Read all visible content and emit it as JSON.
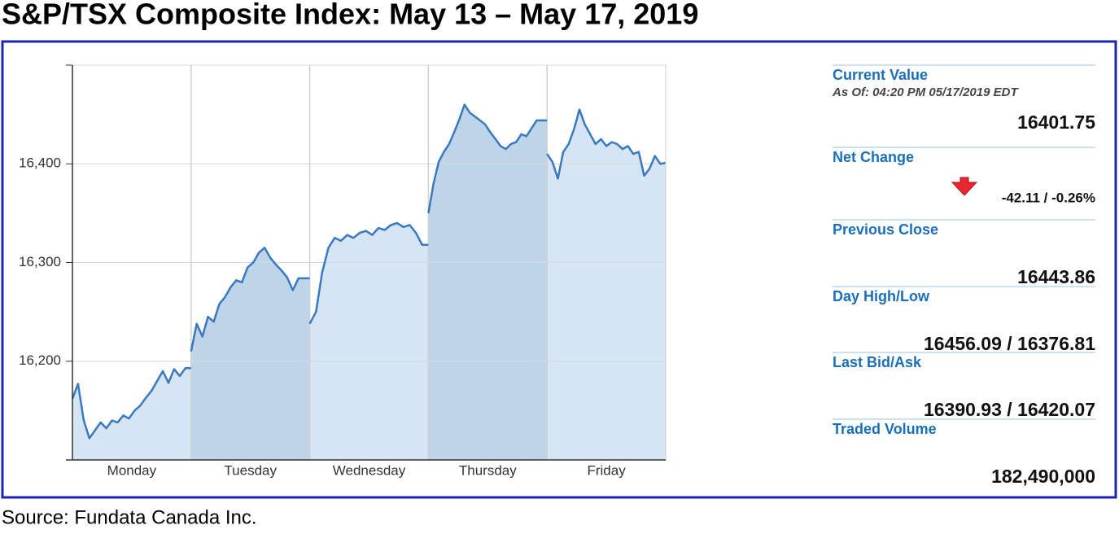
{
  "title": "S&P/TSX Composite Index: May 13 – May 17, 2019",
  "chart_data": {
    "type": "line",
    "categories": [
      "Monday",
      "Tuesday",
      "Wednesday",
      "Thursday",
      "Friday"
    ],
    "values": [
      [
        16162,
        16177,
        16140,
        16122,
        16130,
        16138,
        16132,
        16140,
        16138,
        16145,
        16142,
        16150,
        16155,
        16163,
        16170,
        16180,
        16190,
        16178,
        16192,
        16185,
        16193,
        16193
      ],
      [
        16210,
        16238,
        16225,
        16245,
        16240,
        16258,
        16265,
        16275,
        16282,
        16280,
        16295,
        16300,
        16310,
        16315,
        16305,
        16298,
        16292,
        16285,
        16272,
        16284,
        16284,
        16284
      ],
      [
        16238,
        16250,
        16290,
        16315,
        16325,
        16322,
        16328,
        16325,
        16330,
        16332,
        16328,
        16335,
        16333,
        16338,
        16340,
        16336,
        16338,
        16330,
        16318,
        16318
      ],
      [
        16350,
        16380,
        16402,
        16412,
        16420,
        16432,
        16445,
        16460,
        16452,
        16448,
        16444,
        16440,
        16432,
        16425,
        16418,
        16415,
        16420,
        16422,
        16430,
        16428,
        16436,
        16444,
        16444,
        16444
      ],
      [
        16410,
        16402,
        16385,
        16412,
        16420,
        16435,
        16455,
        16440,
        16430,
        16420,
        16425,
        16418,
        16422,
        16420,
        16415,
        16418,
        16410,
        16412,
        16388,
        16395,
        16408,
        16400,
        16401
      ]
    ],
    "color": "#3a78c0",
    "fill_colors": [
      "#d5e5f3",
      "#bed4e9"
    ],
    "ylim": [
      16100,
      16500
    ],
    "yticks": [
      {
        "value": 16200,
        "label": "16,200"
      },
      {
        "value": 16300,
        "label": "16,300"
      },
      {
        "value": 16400,
        "label": "16,400"
      }
    ],
    "grid": true
  },
  "panel": [
    {
      "label": "Current Value",
      "note": "As Of: 04:20 PM 05/17/2019 EDT",
      "value": "16401.75"
    },
    {
      "label": "Net Change",
      "value": "-42.11 / -0.26%"
    },
    {
      "label": "Previous Close",
      "value": "16443.86"
    },
    {
      "label": "Day High/Low",
      "value": "16456.09 / 16376.81"
    },
    {
      "label": "Last Bid/Ask",
      "value": "16390.93 / 16420.07"
    },
    {
      "label": "Traded Volume",
      "value": "182,490,000"
    }
  ],
  "source": "Source: Fundata Canada Inc."
}
